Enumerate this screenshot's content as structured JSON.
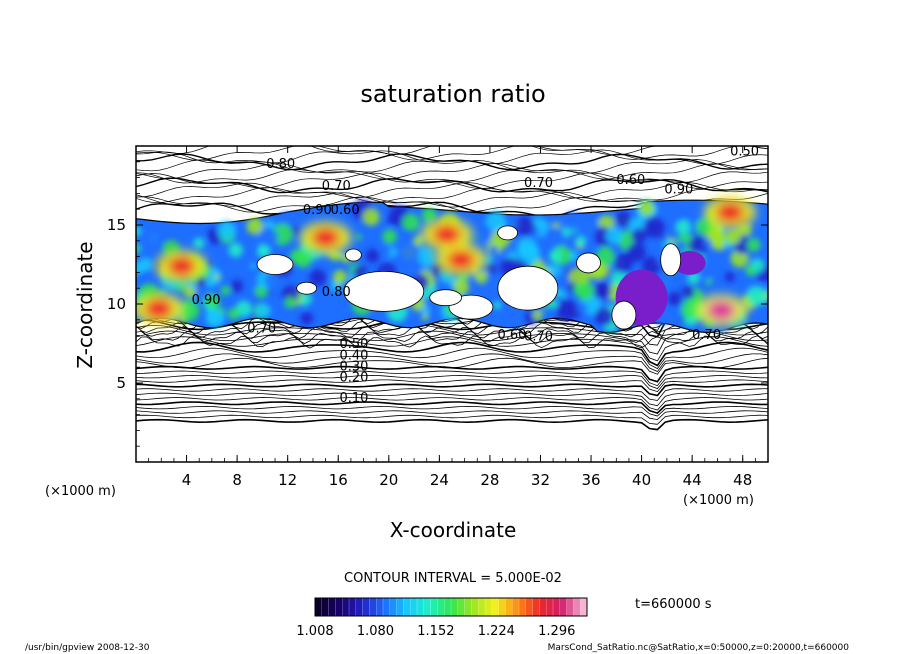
{
  "chart_data": {
    "type": "heatmap",
    "title": "saturation ratio",
    "xlabel": "X-coordinate",
    "ylabel": "Z-coordinate",
    "x_unit": "(×1000 m)",
    "y_unit": "(×1000 m)",
    "xlim": [
      0,
      50
    ],
    "ylim": [
      0,
      20
    ],
    "x_ticks": [
      "4",
      "8",
      "12",
      "16",
      "20",
      "24",
      "28",
      "32",
      "36",
      "40",
      "44",
      "48"
    ],
    "y_ticks": [
      "5",
      "10",
      "15"
    ],
    "contour_interval": "CONTOUR INTERVAL = 5.000E-02",
    "contour_labels": [
      {
        "x": 16.1,
        "z": 3.8,
        "text": "0.10"
      },
      {
        "x": 16.1,
        "z": 5.1,
        "text": "0.20"
      },
      {
        "x": 16.1,
        "z": 5.8,
        "text": "0.30"
      },
      {
        "x": 16.1,
        "z": 6.5,
        "text": "0.40"
      },
      {
        "x": 16.1,
        "z": 7.2,
        "text": "0.50"
      },
      {
        "x": 10.3,
        "z": 18.6,
        "text": "0.80"
      },
      {
        "x": 14.7,
        "z": 17.2,
        "text": "0.70"
      },
      {
        "x": 30.7,
        "z": 17.4,
        "text": "0.70"
      },
      {
        "x": 38.0,
        "z": 17.6,
        "text": "0.60"
      },
      {
        "x": 47.0,
        "z": 19.4,
        "text": "0.50"
      },
      {
        "x": 41.8,
        "z": 17.0,
        "text": "0.90"
      },
      {
        "x": 13.2,
        "z": 15.7,
        "text": "0.90"
      },
      {
        "x": 15.4,
        "z": 15.7,
        "text": "0.60"
      },
      {
        "x": 4.4,
        "z": 10.0,
        "text": "0.90"
      },
      {
        "x": 14.7,
        "z": 10.5,
        "text": "0.80"
      },
      {
        "x": 8.8,
        "z": 8.2,
        "text": "0.70"
      },
      {
        "x": 28.6,
        "z": 7.8,
        "text": "0.60"
      },
      {
        "x": 30.7,
        "z": 7.7,
        "text": "0.70"
      },
      {
        "x": 44.0,
        "z": 7.8,
        "text": "0.70"
      }
    ],
    "colorbar": {
      "min": 1.008,
      "max": 1.332,
      "levels": 40,
      "tick_labels": [
        "1.008",
        "1.080",
        "1.152",
        "1.224",
        "1.296"
      ],
      "colors": [
        "#0a0028",
        "#180070",
        "#2222c8",
        "#1e6eff",
        "#16c8ff",
        "#1ef0c8",
        "#2ee650",
        "#9fe61e",
        "#f0f01e",
        "#ff8c14",
        "#f02828",
        "#d21e6e",
        "#f5b4d2"
      ]
    },
    "regions": [
      {
        "kind": "supersaturated-layer",
        "x_range": [
          0,
          50
        ],
        "z_bottom": 8.8,
        "z_top": 15.9,
        "color": "#1e6eff"
      },
      {
        "kind": "hot-spot",
        "x": 3.6,
        "z": 12.4,
        "color": "#f02828"
      },
      {
        "kind": "hot-spot",
        "x": 1.8,
        "z": 9.7,
        "color": "#f02828"
      },
      {
        "kind": "hot-spot",
        "x": 15.0,
        "z": 14.2,
        "color": "#f02828"
      },
      {
        "kind": "hot-spot",
        "x": 24.6,
        "z": 14.4,
        "color": "#f02828"
      },
      {
        "kind": "hot-spot",
        "x": 25.7,
        "z": 12.8,
        "color": "#f02828"
      },
      {
        "kind": "hot-spot",
        "x": 46.3,
        "z": 9.6,
        "color": "#e0329a"
      },
      {
        "kind": "hot-spot",
        "x": 47.0,
        "z": 15.8,
        "color": "#f02828"
      },
      {
        "kind": "max-region",
        "x": 40.0,
        "z": 10.4,
        "color": "#7a1ecc"
      },
      {
        "kind": "max-region",
        "x": 43.8,
        "z": 12.6,
        "color": "#7a1ecc"
      }
    ],
    "time_label": "t=660000 s"
  },
  "footer": {
    "left": "/usr/bin/gpview  2008-12-30",
    "right": "MarsCond_SatRatio.nc@SatRatio,x=0:50000,z=0:20000,t=660000"
  }
}
